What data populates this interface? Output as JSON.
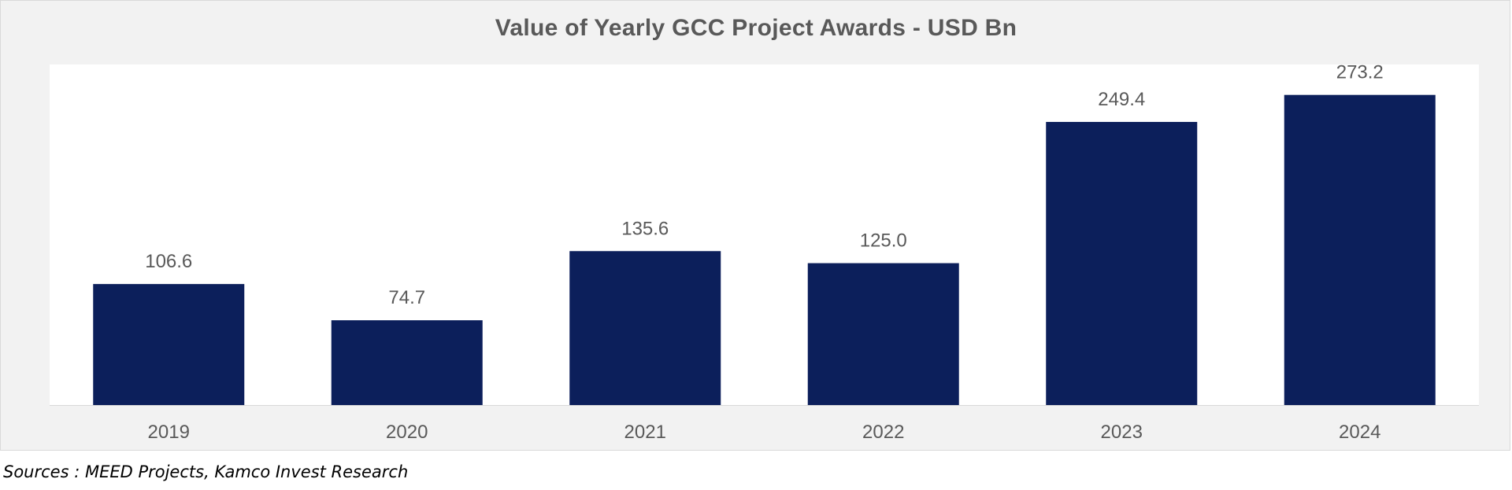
{
  "chart_data": {
    "type": "bar",
    "title": "Value of Yearly GCC Project Awards  - USD Bn",
    "categories": [
      "2019",
      "2020",
      "2021",
      "2022",
      "2023",
      "2024"
    ],
    "values": [
      106.6,
      74.7,
      135.6,
      125.0,
      249.4,
      273.2
    ],
    "value_labels": [
      "106.6",
      "74.7",
      "135.6",
      "125.0",
      "249.4",
      "273.2"
    ],
    "xlabel": "",
    "ylabel": "",
    "ylim": [
      0,
      300
    ],
    "grid": false,
    "legend": "none",
    "colors": {
      "bar": "#0c1f5b",
      "plot_bg": "#ffffff",
      "frame_bg": "#f2f2f2",
      "text": "#595959"
    }
  },
  "footer": {
    "source": "Sources : MEED Projects, Kamco Invest Research"
  }
}
